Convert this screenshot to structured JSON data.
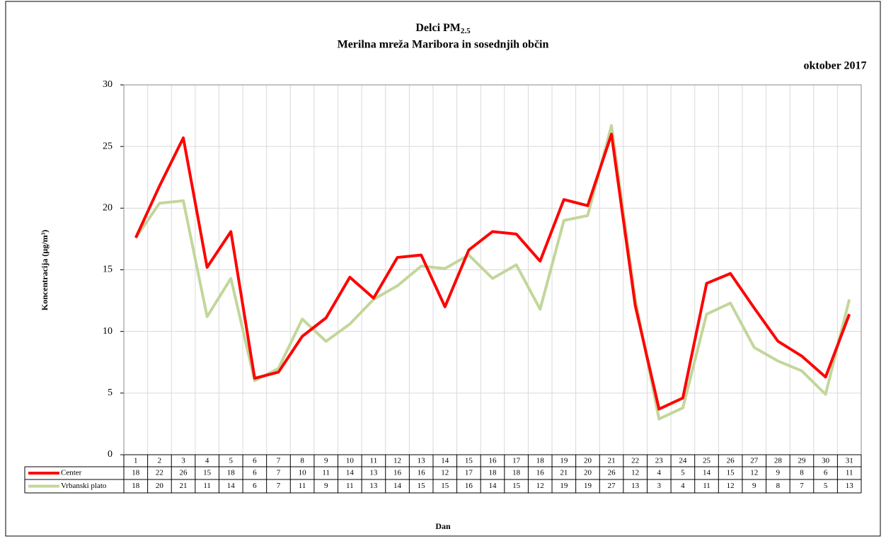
{
  "chart_data": {
    "type": "line",
    "title": {
      "text": "Delci PM",
      "sub": "2.5"
    },
    "subtitle": "Merilna mreža Maribora in sosednjih občin",
    "period": "oktober 2017",
    "ylabel": "Koncentracija  (µg/m³)",
    "xlabel": "Dan",
    "categories": [
      "1",
      "2",
      "3",
      "4",
      "5",
      "6",
      "7",
      "8",
      "9",
      "10",
      "11",
      "12",
      "13",
      "14",
      "15",
      "16",
      "17",
      "18",
      "19",
      "20",
      "21",
      "22",
      "23",
      "24",
      "25",
      "26",
      "27",
      "28",
      "29",
      "30",
      "31"
    ],
    "ylim": [
      0,
      30
    ],
    "yticks": [
      0,
      5,
      10,
      15,
      20,
      25,
      30
    ],
    "grid": true,
    "series": [
      {
        "name": "Center",
        "color": "#ff0000",
        "values": [
          17.6,
          21.8,
          25.7,
          15.2,
          18.1,
          6.2,
          6.7,
          9.6,
          11.1,
          14.4,
          12.7,
          16.0,
          16.2,
          12.0,
          16.6,
          18.1,
          17.9,
          15.7,
          20.7,
          20.2,
          26.0,
          12.1,
          3.7,
          4.6,
          13.9,
          14.7,
          11.9,
          9.2,
          8.0,
          6.3,
          11.4
        ],
        "value_labels": [
          "18",
          "22",
          "26",
          "15",
          "18",
          "6",
          "7",
          "10",
          "11",
          "14",
          "13",
          "16",
          "16",
          "12",
          "17",
          "18",
          "18",
          "16",
          "21",
          "20",
          "26",
          "12",
          "4",
          "5",
          "14",
          "15",
          "12",
          "9",
          "8",
          "6",
          "11"
        ]
      },
      {
        "name": "Vrbanski plato",
        "color": "#c3d69b",
        "values": [
          17.6,
          20.4,
          20.6,
          11.2,
          14.3,
          6.0,
          7.0,
          11.0,
          9.2,
          10.6,
          12.6,
          13.7,
          15.3,
          15.1,
          16.2,
          14.3,
          15.4,
          11.8,
          19.0,
          19.4,
          26.7,
          12.6,
          2.9,
          3.8,
          11.4,
          12.3,
          8.7,
          7.6,
          6.8,
          4.9,
          12.6
        ],
        "value_labels": [
          "18",
          "20",
          "21",
          "11",
          "14",
          "6",
          "7",
          "11",
          "9",
          "11",
          "13",
          "14",
          "15",
          "15",
          "16",
          "14",
          "15",
          "12",
          "19",
          "19",
          "27",
          "13",
          "3",
          "4",
          "11",
          "12",
          "9",
          "8",
          "7",
          "5",
          "13"
        ]
      }
    ]
  }
}
